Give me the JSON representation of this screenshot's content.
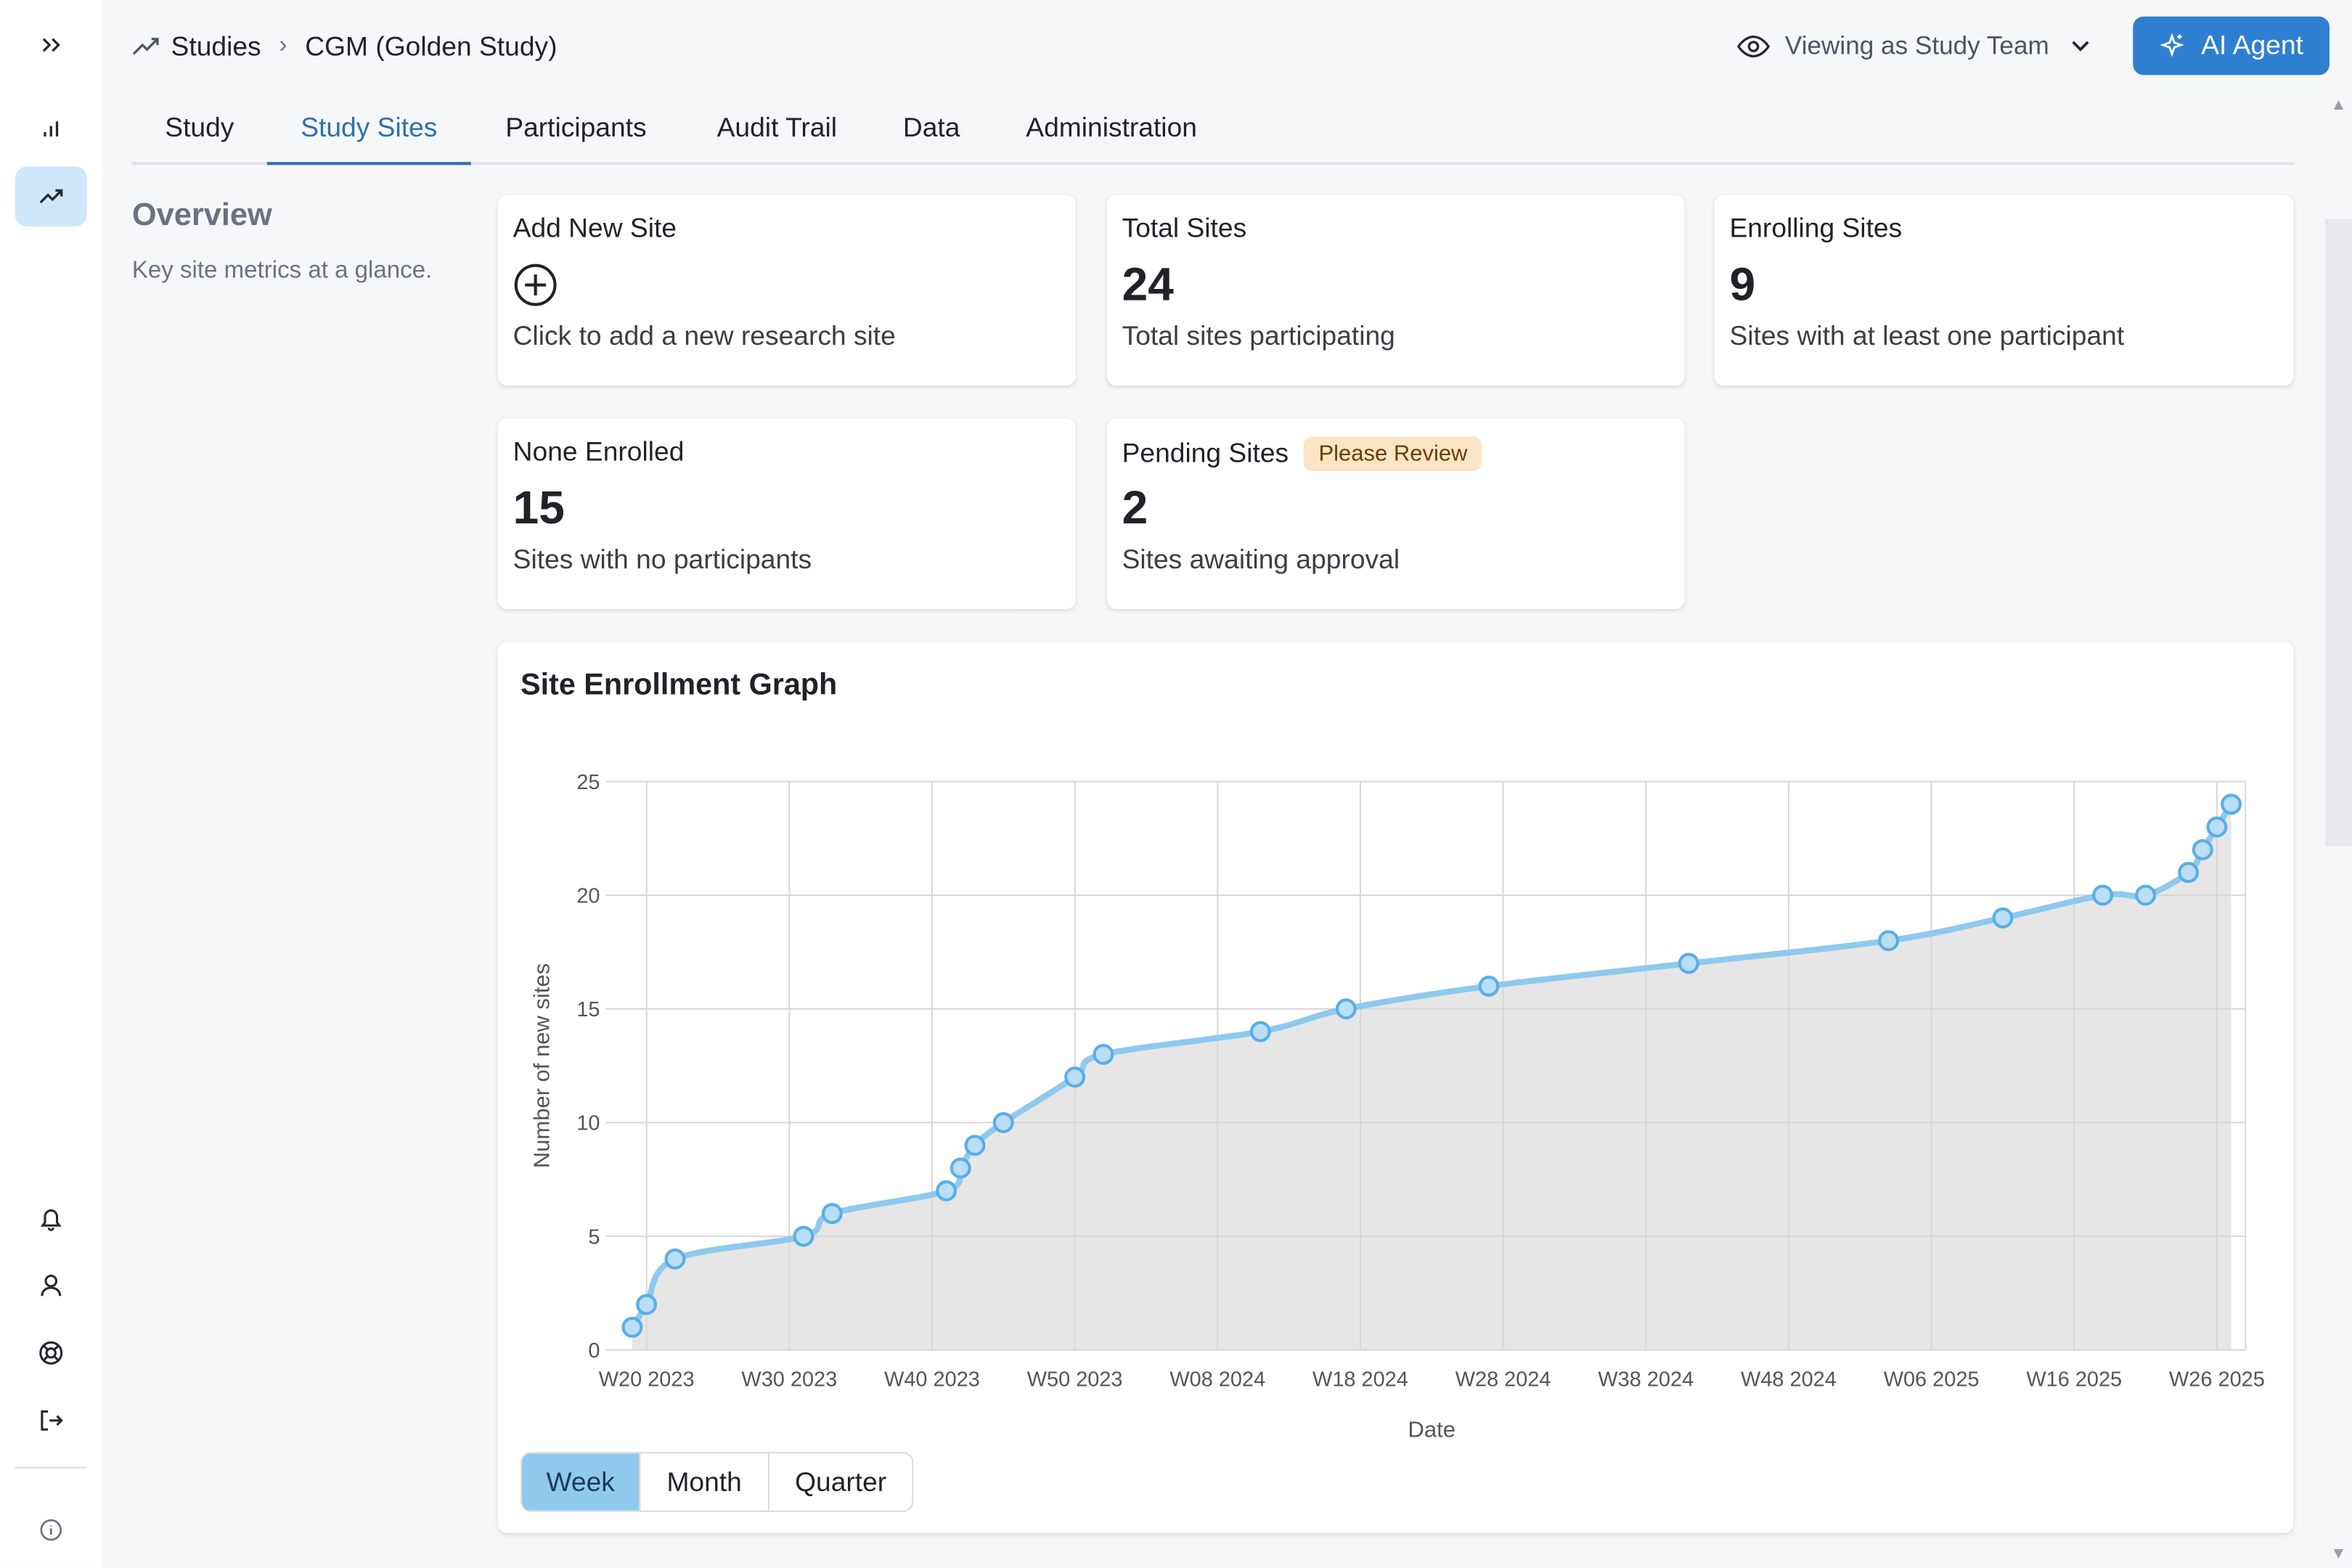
{
  "breadcrumb": {
    "root": "Studies",
    "current": "CGM (Golden Study)"
  },
  "header": {
    "viewing_label": "Viewing as Study Team",
    "ai_button": "AI Agent"
  },
  "tabs": [
    {
      "label": "Study"
    },
    {
      "label": "Study Sites",
      "active": true
    },
    {
      "label": "Participants"
    },
    {
      "label": "Audit Trail"
    },
    {
      "label": "Data"
    },
    {
      "label": "Administration"
    }
  ],
  "overview": {
    "title": "Overview",
    "description": "Key site metrics at a glance."
  },
  "cards": {
    "add": {
      "title": "Add New Site",
      "desc": "Click to add a new research site"
    },
    "total": {
      "title": "Total Sites",
      "value": "24",
      "desc": "Total sites participating"
    },
    "enrolling": {
      "title": "Enrolling Sites",
      "value": "9",
      "desc": "Sites with at least one participant"
    },
    "none": {
      "title": "None Enrolled",
      "value": "15",
      "desc": "Sites with no participants"
    },
    "pending": {
      "title": "Pending Sites",
      "badge": "Please Review",
      "value": "2",
      "desc": "Sites awaiting approval"
    }
  },
  "chart_card": {
    "title": "Site Enrollment Graph"
  },
  "chart_data": {
    "type": "area",
    "title": "Site Enrollment Graph",
    "xlabel": "Date",
    "ylabel": "Number of new sites",
    "ylim": [
      0,
      25
    ],
    "yticks": [
      0,
      5,
      10,
      15,
      20,
      25
    ],
    "x_tick_labels": [
      "W20 2023",
      "W30 2023",
      "W40 2023",
      "W50 2023",
      "W08 2024",
      "W18 2024",
      "W28 2024",
      "W38 2024",
      "W48 2024",
      "W06 2025",
      "W16 2025",
      "W26 2025"
    ],
    "grid": true,
    "series": [
      {
        "x": [
          -1,
          0,
          2,
          11,
          13,
          21,
          22,
          23,
          25,
          30,
          32,
          43,
          49,
          59,
          73,
          87,
          95,
          102,
          105,
          108,
          109,
          110,
          111
        ],
        "y": [
          1,
          2,
          4,
          5,
          6,
          7,
          8,
          9,
          10,
          12,
          13,
          14,
          15,
          16,
          17,
          18,
          19,
          20,
          20,
          21,
          22,
          23,
          24
        ]
      }
    ],
    "colors": {
      "line": "#8fc9ee",
      "area": "#e6e6e6",
      "point_fill": "#b9def6",
      "point_stroke": "#5aaee6"
    }
  },
  "range_toggle": {
    "options": [
      "Week",
      "Month",
      "Quarter"
    ],
    "selected": "Week"
  }
}
